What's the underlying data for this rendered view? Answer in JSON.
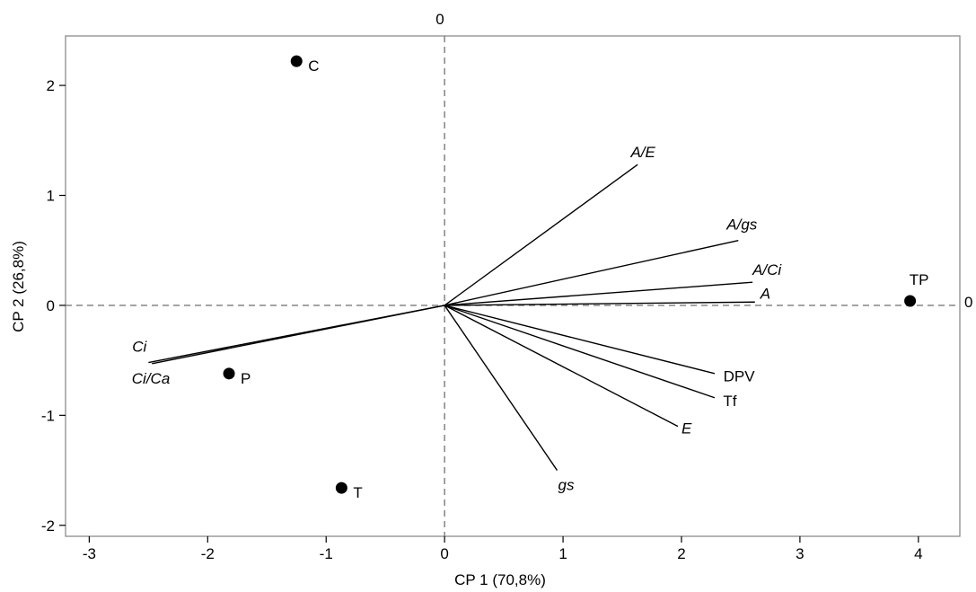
{
  "chart_data": {
    "type": "scatter",
    "subtype": "pca-biplot",
    "xlabel": "CP 1 (70,8%)",
    "ylabel": "CP 2 (26,8%)",
    "xlim": [
      -3.2,
      4.35
    ],
    "ylim": [
      -2.1,
      2.45
    ],
    "xticks": [
      -3,
      -2,
      -1,
      0,
      1,
      2,
      3,
      4
    ],
    "yticks": [
      -2,
      -1,
      0,
      1,
      2
    ],
    "zero_ref_lines": true,
    "zero_ref_labels": {
      "top": "0",
      "right": "0"
    },
    "grid": false,
    "legend": "none",
    "points": [
      {
        "label": "C",
        "x": -1.25,
        "y": 2.22
      },
      {
        "label": "P",
        "x": -1.82,
        "y": -0.62
      },
      {
        "label": "T",
        "x": -0.87,
        "y": -1.66
      },
      {
        "label": "TP",
        "x": 3.93,
        "y": 0.04
      }
    ],
    "vectors": [
      {
        "label": "A/E",
        "italic": true,
        "x": 1.63,
        "y": 1.28
      },
      {
        "label": "A/gs",
        "italic": true,
        "x": 2.48,
        "y": 0.59
      },
      {
        "label": "A/Ci",
        "italic": true,
        "x": 2.6,
        "y": 0.21
      },
      {
        "label": "A",
        "italic": true,
        "x": 2.62,
        "y": 0.03
      },
      {
        "label": "DPV",
        "italic": false,
        "x": 2.28,
        "y": -0.62
      },
      {
        "label": "Tf",
        "italic": false,
        "x": 2.28,
        "y": -0.84
      },
      {
        "label": "E",
        "italic": true,
        "x": 1.97,
        "y": -1.1
      },
      {
        "label": "gs",
        "italic": true,
        "x": 0.95,
        "y": -1.5
      },
      {
        "label": "Ci",
        "italic": true,
        "x": -2.5,
        "y": -0.52
      },
      {
        "label": "Ci/Ca",
        "italic": true,
        "x": -2.47,
        "y": -0.53
      }
    ]
  }
}
